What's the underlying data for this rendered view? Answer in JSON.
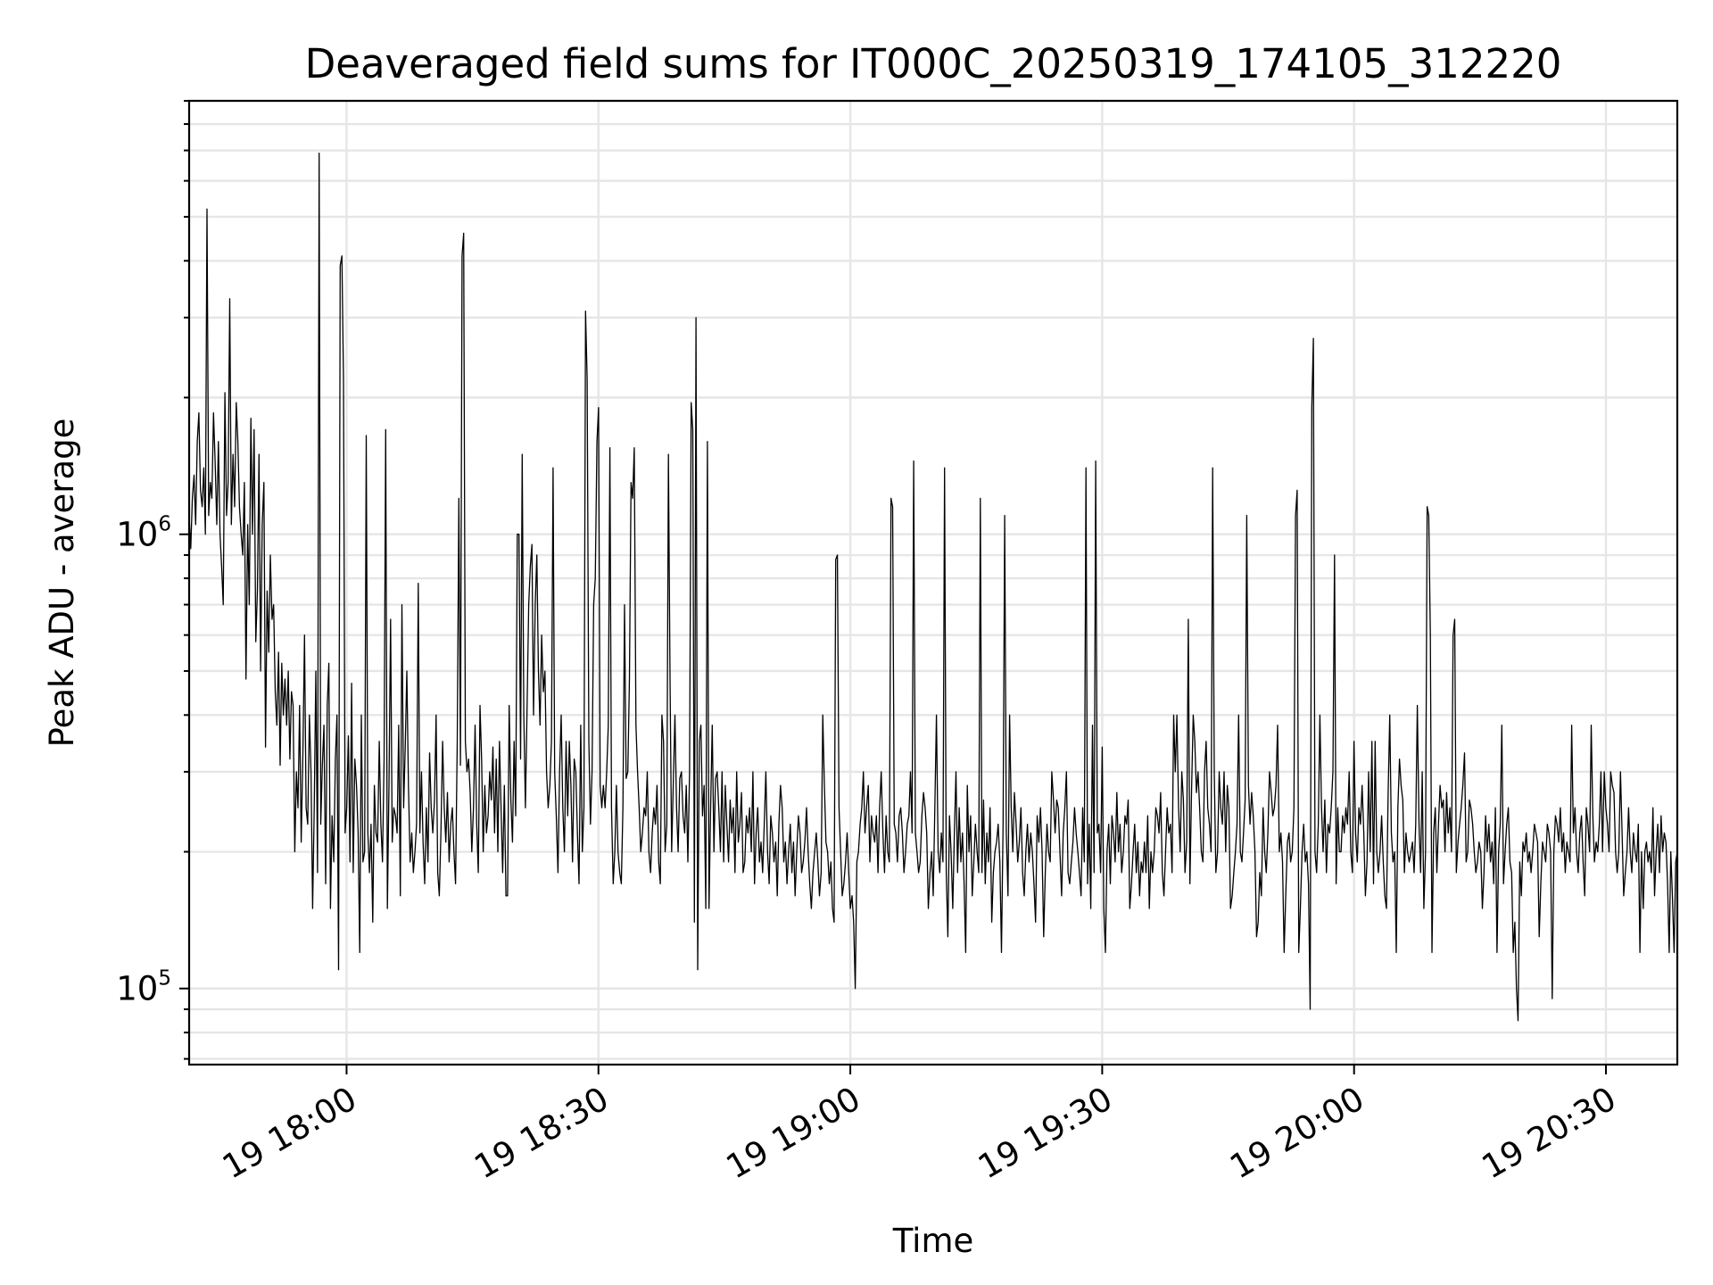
{
  "chart_data": {
    "type": "line",
    "title": "Deaveraged field sums for IT000C_20250319_174105_312220",
    "xlabel": "Time",
    "ylabel": "Peak ADU - average",
    "yscale": "log",
    "ylim": [
      68000,
      9000000
    ],
    "xlim": [
      "2025-03-19 17:41:15",
      "2025-03-19 20:38:30"
    ],
    "x_ticks": [
      {
        "t": "2025-03-19 18:00",
        "label": "19 18:00"
      },
      {
        "t": "2025-03-19 18:30",
        "label": "19 18:30"
      },
      {
        "t": "2025-03-19 19:00",
        "label": "19 19:00"
      },
      {
        "t": "2025-03-19 19:30",
        "label": "19 19:30"
      },
      {
        "t": "2025-03-19 20:00",
        "label": "19 20:00"
      },
      {
        "t": "2025-03-19 20:30",
        "label": "19 20:30"
      }
    ],
    "y_major_ticks": [
      {
        "value": 100000,
        "base": "10",
        "exp": "5"
      },
      {
        "value": 1000000,
        "base": "10",
        "exp": "6"
      }
    ],
    "grid": true,
    "line_color": "#000000",
    "series": [
      {
        "x_start": "2025-03-19 17:41:15",
        "x_end": "2025-03-19 20:38:30",
        "values": [
          1100000,
          930000,
          1200000,
          1350000,
          1050000,
          1600000,
          1850000,
          1250000,
          1150000,
          1400000,
          1000000,
          5200000,
          1100000,
          1300000,
          1200000,
          1850000,
          1450000,
          1050000,
          1600000,
          1000000,
          850000,
          700000,
          2050000,
          1100000,
          1300000,
          3300000,
          1050000,
          1500000,
          1150000,
          1950000,
          1600000,
          1150000,
          1000000,
          900000,
          1300000,
          480000,
          1050000,
          700000,
          1800000,
          1000000,
          1700000,
          580000,
          750000,
          1500000,
          500000,
          1050000,
          1300000,
          340000,
          750000,
          550000,
          900000,
          650000,
          700000,
          450000,
          380000,
          550000,
          310000,
          520000,
          400000,
          480000,
          380000,
          500000,
          320000,
          450000,
          420000,
          200000,
          300000,
          250000,
          420000,
          210000,
          330000,
          600000,
          250000,
          230000,
          400000,
          300000,
          150000,
          250000,
          500000,
          180000,
          6900000,
          230000,
          310000,
          380000,
          170000,
          420000,
          520000,
          150000,
          240000,
          190000,
          320000,
          400000,
          110000,
          3900000,
          4100000,
          2200000,
          220000,
          250000,
          360000,
          190000,
          470000,
          180000,
          320000,
          280000,
          220000,
          120000,
          400000,
          190000,
          200000,
          1650000,
          220000,
          180000,
          230000,
          140000,
          280000,
          220000,
          210000,
          350000,
          230000,
          190000,
          320000,
          1700000,
          150000,
          280000,
          650000,
          210000,
          250000,
          240000,
          220000,
          380000,
          160000,
          700000,
          250000,
          340000,
          500000,
          280000,
          190000,
          220000,
          180000,
          200000,
          230000,
          780000,
          220000,
          300000,
          210000,
          170000,
          250000,
          190000,
          330000,
          250000,
          220000,
          260000,
          400000,
          180000,
          160000,
          220000,
          350000,
          250000,
          210000,
          270000,
          190000,
          230000,
          250000,
          200000,
          170000,
          350000,
          1200000,
          310000,
          4100000,
          4600000,
          350000,
          300000,
          320000,
          270000,
          200000,
          250000,
          380000,
          230000,
          180000,
          420000,
          320000,
          200000,
          280000,
          220000,
          240000,
          300000,
          260000,
          340000,
          220000,
          320000,
          200000,
          350000,
          250000,
          180000,
          280000,
          160000,
          160000,
          420000,
          260000,
          210000,
          350000,
          240000,
          1000000,
          1000000,
          320000,
          1500000,
          400000,
          250000,
          420000,
          700000,
          850000,
          950000,
          400000,
          700000,
          900000,
          500000,
          380000,
          600000,
          450000,
          500000,
          300000,
          250000,
          280000,
          350000,
          1400000,
          300000,
          240000,
          180000,
          300000,
          400000,
          250000,
          200000,
          350000,
          240000,
          350000,
          280000,
          190000,
          320000,
          300000,
          220000,
          170000,
          380000,
          200000,
          250000,
          3100000,
          2200000,
          350000,
          230000,
          300000,
          700000,
          800000,
          1600000,
          1900000,
          280000,
          250000,
          280000,
          250000,
          300000,
          380000,
          1550000,
          250000,
          170000,
          200000,
          280000,
          200000,
          180000,
          170000,
          250000,
          700000,
          290000,
          300000,
          480000,
          1300000,
          1200000,
          1550000,
          380000,
          300000,
          250000,
          200000,
          220000,
          250000,
          240000,
          300000,
          200000,
          180000,
          220000,
          250000,
          230000,
          280000,
          190000,
          170000,
          400000,
          350000,
          200000,
          230000,
          1500000,
          480000,
          200000,
          280000,
          400000,
          250000,
          200000,
          290000,
          300000,
          240000,
          220000,
          280000,
          190000,
          300000,
          1950000,
          1700000,
          140000,
          3000000,
          110000,
          350000,
          380000,
          240000,
          280000,
          150000,
          1600000,
          150000,
          250000,
          380000,
          200000,
          290000,
          300000,
          250000,
          200000,
          300000,
          190000,
          280000,
          230000,
          190000,
          260000,
          220000,
          250000,
          180000,
          300000,
          210000,
          230000,
          270000,
          180000,
          190000,
          240000,
          220000,
          250000,
          200000,
          300000,
          170000,
          220000,
          250000,
          190000,
          210000,
          180000,
          230000,
          300000,
          200000,
          170000,
          240000,
          220000,
          190000,
          210000,
          160000,
          230000,
          280000,
          250000,
          190000,
          210000,
          170000,
          200000,
          230000,
          180000,
          210000,
          160000,
          200000,
          240000,
          220000,
          180000,
          190000,
          210000,
          250000,
          200000,
          170000,
          150000,
          180000,
          200000,
          220000,
          190000,
          160000,
          180000,
          400000,
          280000,
          210000,
          200000,
          170000,
          190000,
          150000,
          140000,
          880000,
          900000,
          250000,
          200000,
          160000,
          170000,
          190000,
          220000,
          180000,
          150000,
          160000,
          140000,
          100000,
          190000,
          200000,
          230000,
          250000,
          300000,
          220000,
          250000,
          280000,
          190000,
          240000,
          220000,
          210000,
          240000,
          180000,
          250000,
          300000,
          220000,
          180000,
          240000,
          200000,
          190000,
          1200000,
          1150000,
          230000,
          220000,
          190000,
          240000,
          250000,
          220000,
          180000,
          200000,
          230000,
          240000,
          300000,
          220000,
          1450000,
          220000,
          200000,
          180000,
          190000,
          240000,
          270000,
          250000,
          220000,
          150000,
          180000,
          200000,
          160000,
          250000,
          400000,
          200000,
          180000,
          220000,
          190000,
          1400000,
          180000,
          130000,
          240000,
          200000,
          150000,
          220000,
          300000,
          180000,
          250000,
          190000,
          220000,
          170000,
          120000,
          280000,
          200000,
          240000,
          160000,
          190000,
          230000,
          200000,
          180000,
          1200000,
          180000,
          260000,
          170000,
          220000,
          190000,
          250000,
          140000,
          180000,
          200000,
          210000,
          230000,
          190000,
          120000,
          230000,
          1100000,
          220000,
          160000,
          400000,
          250000,
          200000,
          270000,
          230000,
          190000,
          210000,
          250000,
          180000,
          160000,
          200000,
          230000,
          190000,
          220000,
          200000,
          170000,
          140000,
          240000,
          210000,
          250000,
          200000,
          130000,
          180000,
          230000,
          200000,
          190000,
          300000,
          260000,
          220000,
          260000,
          250000,
          200000,
          160000,
          220000,
          250000,
          300000,
          180000,
          170000,
          190000,
          210000,
          250000,
          220000,
          200000,
          180000,
          160000,
          250000,
          190000,
          1400000,
          170000,
          230000,
          150000,
          380000,
          180000,
          1450000,
          220000,
          230000,
          180000,
          340000,
          150000,
          120000,
          200000,
          230000,
          170000,
          240000,
          220000,
          190000,
          270000,
          200000,
          230000,
          180000,
          200000,
          240000,
          230000,
          260000,
          150000,
          170000,
          200000,
          230000,
          180000,
          210000,
          160000,
          190000,
          180000,
          210000,
          180000,
          240000,
          150000,
          200000,
          180000,
          200000,
          250000,
          240000,
          220000,
          270000,
          180000,
          160000,
          200000,
          250000,
          220000,
          230000,
          180000,
          400000,
          300000,
          400000,
          250000,
          200000,
          300000,
          260000,
          180000,
          210000,
          650000,
          170000,
          270000,
          400000,
          350000,
          270000,
          300000,
          250000,
          200000,
          190000,
          300000,
          350000,
          250000,
          230000,
          200000,
          1400000,
          300000,
          180000,
          200000,
          300000,
          250000,
          230000,
          300000,
          200000,
          280000,
          250000,
          150000,
          160000,
          180000,
          200000,
          230000,
          400000,
          200000,
          190000,
          220000,
          260000,
          1100000,
          280000,
          230000,
          270000,
          240000,
          200000,
          130000,
          140000,
          180000,
          160000,
          250000,
          200000,
          180000,
          220000,
          300000,
          270000,
          240000,
          250000,
          280000,
          380000,
          200000,
          220000,
          190000,
          120000,
          160000,
          210000,
          220000,
          190000,
          200000,
          250000,
          1100000,
          1250000,
          120000,
          150000,
          200000,
          230000,
          190000,
          200000,
          170000,
          90000,
          1900000,
          2700000,
          200000,
          180000,
          230000,
          400000,
          250000,
          200000,
          260000,
          180000,
          230000,
          220000,
          250000,
          300000,
          900000,
          170000,
          250000,
          200000,
          200000,
          240000,
          220000,
          250000,
          230000,
          300000,
          200000,
          180000,
          350000,
          220000,
          190000,
          250000,
          230000,
          280000,
          220000,
          160000,
          190000,
          300000,
          200000,
          350000,
          170000,
          350000,
          200000,
          180000,
          200000,
          240000,
          190000,
          160000,
          150000,
          270000,
          400000,
          220000,
          190000,
          200000,
          120000,
          250000,
          320000,
          280000,
          260000,
          180000,
          220000,
          200000,
          190000,
          200000,
          210000,
          180000,
          230000,
          420000,
          230000,
          180000,
          300000,
          150000,
          200000,
          1150000,
          1100000,
          600000,
          120000,
          220000,
          250000,
          180000,
          230000,
          280000,
          250000,
          260000,
          200000,
          270000,
          220000,
          250000,
          200000,
          600000,
          650000,
          180000,
          210000,
          230000,
          250000,
          280000,
          330000,
          190000,
          200000,
          260000,
          250000,
          230000,
          200000,
          180000,
          190000,
          210000,
          200000,
          150000,
          180000,
          240000,
          200000,
          230000,
          190000,
          210000,
          170000,
          250000,
          120000,
          200000,
          230000,
          380000,
          170000,
          200000,
          230000,
          250000,
          190000,
          180000,
          120000,
          140000,
          100000,
          85000,
          190000,
          160000,
          210000,
          200000,
          220000,
          190000,
          200000,
          180000,
          200000,
          230000,
          220000,
          210000,
          130000,
          170000,
          210000,
          200000,
          190000,
          230000,
          220000,
          200000,
          95000,
          200000,
          240000,
          230000,
          210000,
          250000,
          200000,
          220000,
          180000,
          210000,
          200000,
          190000,
          380000,
          220000,
          250000,
          200000,
          180000,
          220000,
          240000,
          190000,
          160000,
          250000,
          230000,
          200000,
          380000,
          240000,
          190000,
          210000,
          200000,
          230000,
          300000,
          200000,
          300000,
          250000,
          230000,
          200000,
          300000,
          280000,
          270000,
          200000,
          180000,
          200000,
          300000,
          220000,
          160000,
          180000,
          200000,
          250000,
          200000,
          180000,
          220000,
          200000,
          190000,
          230000,
          120000,
          200000,
          150000,
          200000,
          210000,
          190000,
          200000,
          180000,
          250000,
          160000,
          200000,
          230000,
          180000,
          240000,
          200000,
          220000,
          210000,
          170000,
          120000,
          200000,
          160000,
          120000,
          190000,
          200000
        ]
      }
    ]
  }
}
